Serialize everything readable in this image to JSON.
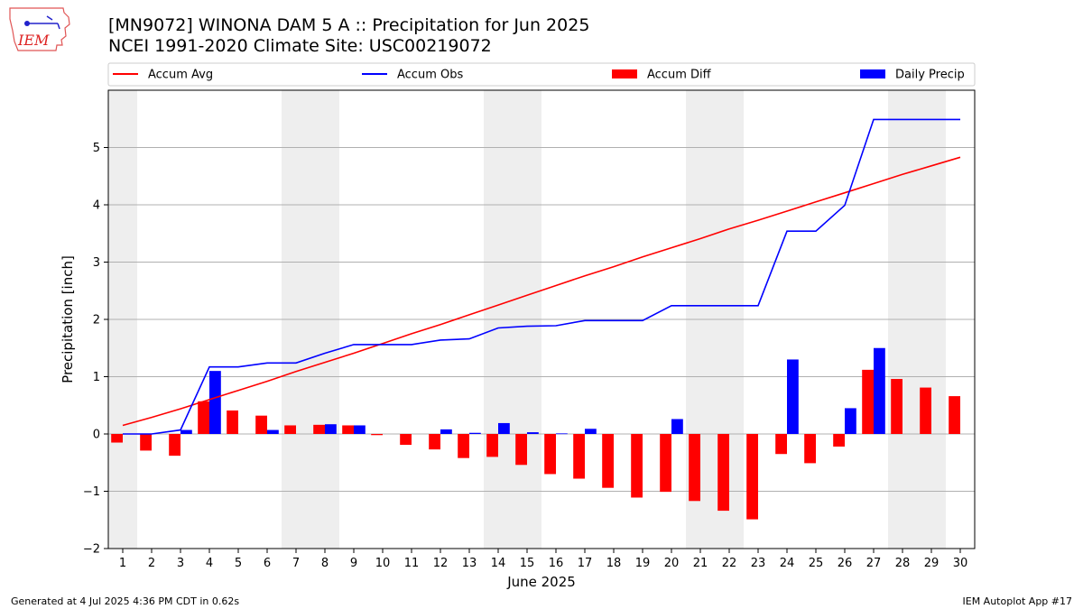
{
  "header": {
    "title_line1": "[MN9072] WINONA DAM 5 A :: Precipitation for Jun 2025",
    "title_line2": "NCEI 1991-2020 Climate Site: USC00219072",
    "logo_text": "IEM"
  },
  "footer": {
    "left": "Generated at 4 Jul 2025 4:36 PM CDT in 0.62s",
    "right": "IEM Autoplot App #17"
  },
  "colors": {
    "accum_avg": "#ff0000",
    "accum_obs": "#0000ff",
    "accum_diff": "#ff0000",
    "daily_precip": "#0000ff",
    "weekend_shade": "#eeeeee",
    "grid": "#b0b0b0"
  },
  "chart_data": {
    "type": "bar",
    "xlabel": "June 2025",
    "ylabel": "Precipitation [inch]",
    "ylim": [
      -2,
      6
    ],
    "yticks": [
      -2,
      -1,
      0,
      1,
      2,
      3,
      4,
      5
    ],
    "ytick_labels": [
      "−2",
      "−1",
      "0",
      "1",
      "2",
      "3",
      "4",
      "5"
    ],
    "xlim": [
      0.5,
      30.5
    ],
    "grid": "horizontal",
    "legend_position": "top",
    "legend": [
      "Accum Avg",
      "Accum Obs",
      "Accum Diff",
      "Daily Precip"
    ],
    "categories": [
      "1",
      "2",
      "3",
      "4",
      "5",
      "6",
      "7",
      "8",
      "9",
      "10",
      "11",
      "12",
      "13",
      "14",
      "15",
      "16",
      "17",
      "18",
      "19",
      "20",
      "21",
      "22",
      "23",
      "24",
      "25",
      "26",
      "27",
      "28",
      "29",
      "30"
    ],
    "weekend_ranges": [
      [
        0.5,
        1.5
      ],
      [
        6.5,
        8.5
      ],
      [
        13.5,
        15.5
      ],
      [
        20.5,
        22.5
      ],
      [
        27.5,
        29.5
      ]
    ],
    "series": [
      {
        "name": "Accum Avg",
        "kind": "line",
        "values": [
          0.15,
          0.29,
          0.44,
          0.6,
          0.76,
          0.92,
          1.09,
          1.25,
          1.41,
          1.58,
          1.75,
          1.91,
          2.08,
          2.25,
          2.42,
          2.59,
          2.76,
          2.92,
          3.09,
          3.25,
          3.41,
          3.58,
          3.73,
          3.89,
          4.05,
          4.21,
          4.37,
          4.53,
          4.68,
          4.83
        ]
      },
      {
        "name": "Accum Obs",
        "kind": "line",
        "values": [
          0.0,
          0.0,
          0.07,
          1.17,
          1.17,
          1.24,
          1.24,
          1.41,
          1.56,
          1.56,
          1.56,
          1.64,
          1.66,
          1.85,
          1.88,
          1.89,
          1.98,
          1.98,
          1.98,
          2.24,
          2.24,
          2.24,
          2.24,
          3.54,
          3.54,
          3.99,
          5.49,
          5.49,
          5.49,
          5.49
        ]
      },
      {
        "name": "Accum Diff",
        "kind": "bar",
        "values": [
          -0.15,
          -0.29,
          -0.38,
          0.57,
          0.41,
          0.32,
          0.15,
          0.16,
          0.15,
          -0.02,
          -0.19,
          -0.27,
          -0.42,
          -0.4,
          -0.54,
          -0.7,
          -0.78,
          -0.94,
          -1.11,
          -1.01,
          -1.17,
          -1.34,
          -1.49,
          -0.35,
          -0.51,
          -0.22,
          1.12,
          0.96,
          0.81,
          0.66
        ]
      },
      {
        "name": "Daily Precip",
        "kind": "bar",
        "values": [
          0.0,
          0.0,
          0.07,
          1.1,
          0.0,
          0.07,
          0.0,
          0.17,
          0.15,
          0.0,
          0.0,
          0.08,
          0.02,
          0.19,
          0.03,
          0.01,
          0.09,
          0.0,
          0.0,
          0.26,
          0.0,
          0.0,
          0.0,
          1.3,
          0.0,
          0.45,
          1.5,
          0.0,
          0.0,
          0.0
        ]
      }
    ]
  }
}
